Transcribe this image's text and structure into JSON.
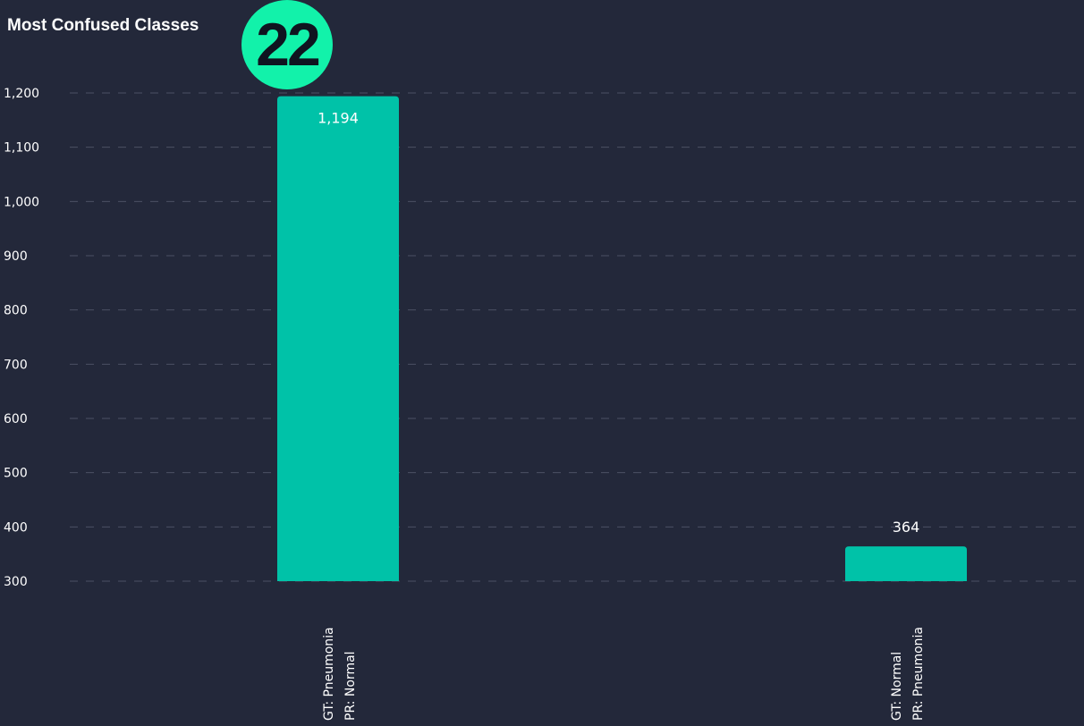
{
  "badge": {
    "number": "22"
  },
  "colors": {
    "background": "#23283a",
    "bar": "#00c2a8",
    "gridline": "#4b5064",
    "text": "#ffffff",
    "badge": "#12f2aa"
  },
  "chart_data": {
    "type": "bar",
    "title": "Most Confused Classes",
    "xlabel": "",
    "ylabel": "",
    "categories": [
      [
        "GT: Pneumonia",
        "PR: Normal"
      ],
      [
        "GT: Normal",
        "PR: Pneumonia"
      ]
    ],
    "values": [
      1194,
      364
    ],
    "value_labels": [
      "1,194",
      "364"
    ],
    "ylim": [
      300,
      1200
    ],
    "yticks": [
      300,
      400,
      500,
      600,
      700,
      800,
      900,
      1000,
      1100,
      1200
    ],
    "ytick_labels": [
      "300",
      "400",
      "500",
      "600",
      "700",
      "800",
      "900",
      "1,000",
      "1,100",
      "1,200"
    ],
    "grid": true,
    "grid_style": "dashed",
    "legend": "none",
    "category_label_orientation": "vertical"
  }
}
